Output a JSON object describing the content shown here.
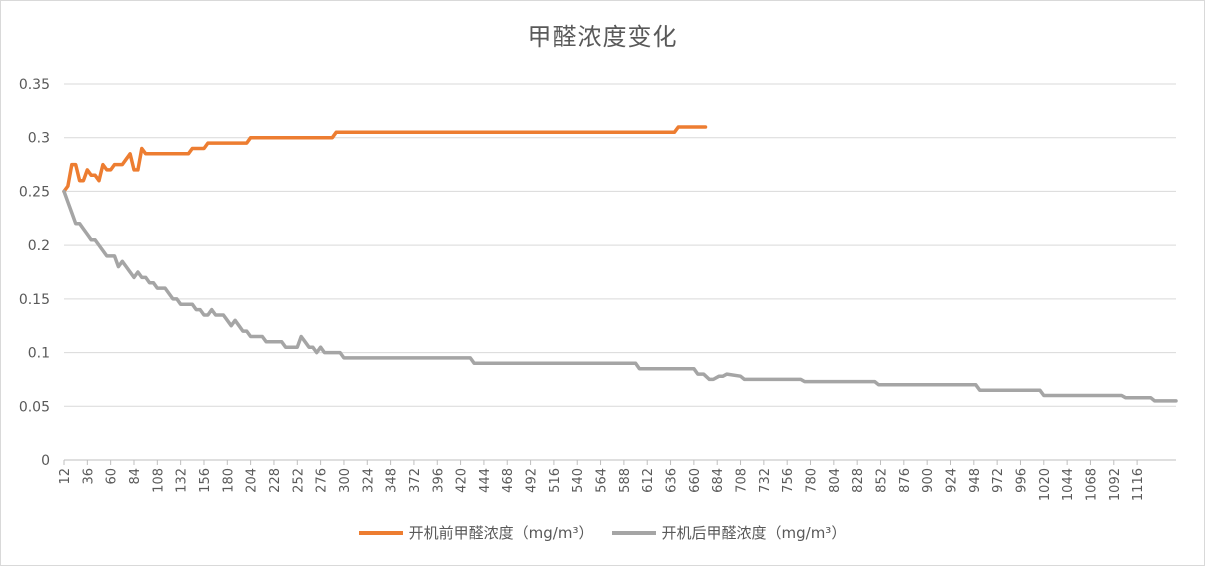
{
  "chart_data": {
    "type": "line",
    "title": "甲醛浓度变化",
    "xlabel": "",
    "ylabel": "",
    "ylim": [
      0,
      0.35
    ],
    "yticks": [
      "0",
      "0.05",
      "0.1",
      "0.15",
      "0.2",
      "0.25",
      "0.3",
      "0.35"
    ],
    "xlim": [
      12,
      1136
    ],
    "xticks": [
      "12",
      "36",
      "60",
      "84",
      "108",
      "132",
      "156",
      "180",
      "204",
      "228",
      "252",
      "276",
      "300",
      "324",
      "348",
      "372",
      "396",
      "420",
      "444",
      "468",
      "492",
      "516",
      "540",
      "564",
      "588",
      "612",
      "636",
      "660",
      "684",
      "708",
      "732",
      "756",
      "780",
      "804",
      "828",
      "852",
      "876",
      "900",
      "924",
      "948",
      "972",
      "996",
      "1020",
      "1044",
      "1068",
      "1092",
      "1116"
    ],
    "grid": true,
    "legend_position": "bottom",
    "series": [
      {
        "name": "开机前甲醛浓度（mg/m³）",
        "color": "#ED7D31",
        "x": [
          12,
          16,
          20,
          24,
          28,
          32,
          36,
          40,
          44,
          48,
          52,
          56,
          60,
          64,
          68,
          72,
          76,
          80,
          84,
          88,
          92,
          96,
          100,
          104,
          140,
          144,
          156,
          160,
          200,
          204,
          288,
          292,
          640,
          644,
          672
        ],
        "y": [
          0.25,
          0.255,
          0.275,
          0.275,
          0.26,
          0.26,
          0.27,
          0.265,
          0.265,
          0.26,
          0.275,
          0.27,
          0.27,
          0.275,
          0.275,
          0.275,
          0.28,
          0.285,
          0.27,
          0.27,
          0.29,
          0.285,
          0.285,
          0.285,
          0.285,
          0.29,
          0.29,
          0.295,
          0.295,
          0.3,
          0.3,
          0.305,
          0.305,
          0.31,
          0.31
        ]
      },
      {
        "name": "开机后甲醛浓度（mg/m³）",
        "color": "#A5A5A5",
        "x": [
          12,
          16,
          20,
          24,
          28,
          32,
          36,
          40,
          44,
          48,
          52,
          56,
          60,
          64,
          68,
          72,
          76,
          80,
          84,
          88,
          92,
          96,
          100,
          104,
          108,
          112,
          116,
          120,
          124,
          128,
          132,
          136,
          140,
          144,
          148,
          152,
          156,
          160,
          164,
          168,
          172,
          176,
          180,
          184,
          188,
          192,
          196,
          200,
          204,
          208,
          212,
          216,
          220,
          224,
          228,
          232,
          236,
          240,
          244,
          248,
          252,
          256,
          260,
          264,
          268,
          272,
          276,
          280,
          284,
          288,
          292,
          296,
          300,
          304,
          430,
          434,
          600,
          604,
          660,
          664,
          670,
          676,
          680,
          686,
          690,
          694,
          708,
          712,
          770,
          774,
          846,
          850,
          950,
          954,
          1016,
          1020,
          1100,
          1104,
          1130,
          1134,
          1156
        ],
        "y": [
          0.25,
          0.24,
          0.23,
          0.22,
          0.22,
          0.215,
          0.21,
          0.205,
          0.205,
          0.2,
          0.195,
          0.19,
          0.19,
          0.19,
          0.18,
          0.185,
          0.18,
          0.175,
          0.17,
          0.175,
          0.17,
          0.17,
          0.165,
          0.165,
          0.16,
          0.16,
          0.16,
          0.155,
          0.15,
          0.15,
          0.145,
          0.145,
          0.145,
          0.145,
          0.14,
          0.14,
          0.135,
          0.135,
          0.14,
          0.135,
          0.135,
          0.135,
          0.13,
          0.125,
          0.13,
          0.125,
          0.12,
          0.12,
          0.115,
          0.115,
          0.115,
          0.115,
          0.11,
          0.11,
          0.11,
          0.11,
          0.11,
          0.105,
          0.105,
          0.105,
          0.105,
          0.115,
          0.11,
          0.105,
          0.105,
          0.1,
          0.105,
          0.1,
          0.1,
          0.1,
          0.1,
          0.1,
          0.095,
          0.095,
          0.095,
          0.09,
          0.09,
          0.085,
          0.085,
          0.08,
          0.08,
          0.075,
          0.075,
          0.078,
          0.078,
          0.08,
          0.078,
          0.075,
          0.075,
          0.073,
          0.073,
          0.07,
          0.07,
          0.065,
          0.065,
          0.06,
          0.06,
          0.058,
          0.058,
          0.055,
          0.055
        ]
      }
    ]
  }
}
